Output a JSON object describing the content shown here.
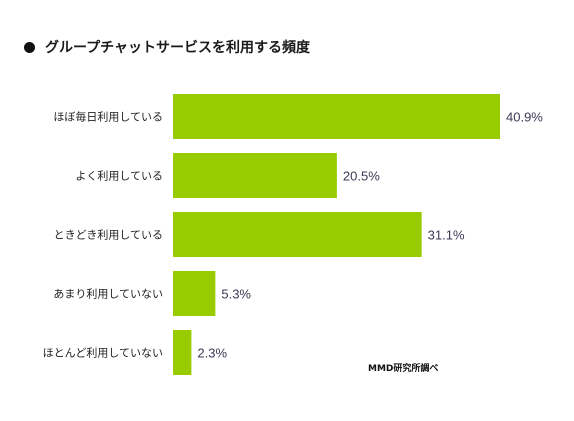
{
  "chart_data": {
    "type": "bar",
    "orientation": "horizontal",
    "title": "グループチャットサービスを利用する頻度",
    "categories": [
      "ほぼ毎日利用している",
      "よく利用している",
      "ときどき利用している",
      "あまり利用していない",
      "ほとんど利用していない"
    ],
    "values": [
      40.9,
      20.5,
      31.1,
      5.3,
      2.3
    ],
    "value_labels": [
      "40.9%",
      "20.5%",
      "31.1%",
      "5.3%",
      "2.3%"
    ],
    "unit": "%",
    "xlim": [
      0,
      40.9
    ],
    "grid": false,
    "legend": "none",
    "bar_color": "#99cc00",
    "source": "MMD研究所調べ"
  }
}
